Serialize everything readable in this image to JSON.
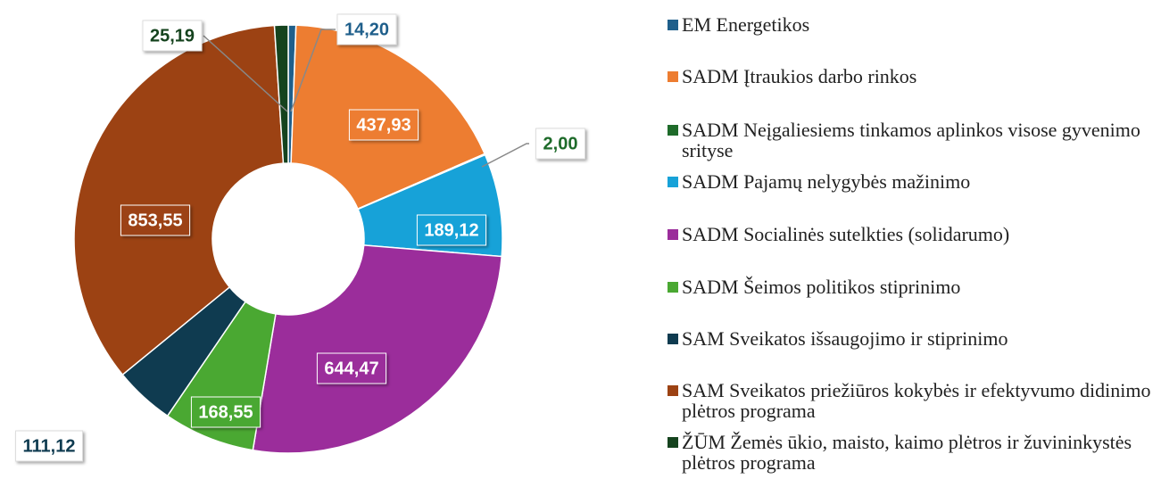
{
  "chart_data": {
    "type": "donut",
    "categories": [
      "EM Energetikos",
      "SADM Įtraukios darbo rinkos",
      "SADM Neįgaliesiems tinkamos aplinkos visose gyvenimo srityse",
      "SADM Pajamų nelygybės mažinimo",
      "SADM Socialinės sutelkties (solidarumo)",
      "SADM Šeimos politikos stiprinimo",
      "SAM Sveikatos išsaugojimo ir stiprinimo",
      "SAM Sveikatos priežiūros kokybės ir efektyvumo didinimo plėtros programa",
      "ŽŪM Žemės ūkio, maisto, kaimo plėtros ir žuvininkystės  plėtros programa"
    ],
    "values": [
      14.2,
      437.93,
      2.0,
      189.12,
      644.47,
      168.55,
      111.12,
      853.55,
      25.19
    ],
    "value_labels": [
      "14,20",
      "437,93",
      "2,00",
      "189,12",
      "644,47",
      "168,55",
      "111,12",
      "853,55",
      "25,19"
    ],
    "colors": [
      "#1f5f8b",
      "#ed7d31",
      "#1e6b2a",
      "#17a2d8",
      "#9b2d9b",
      "#4aa832",
      "#0f3b50",
      "#9c4213",
      "#15431e"
    ],
    "legend": "right"
  }
}
